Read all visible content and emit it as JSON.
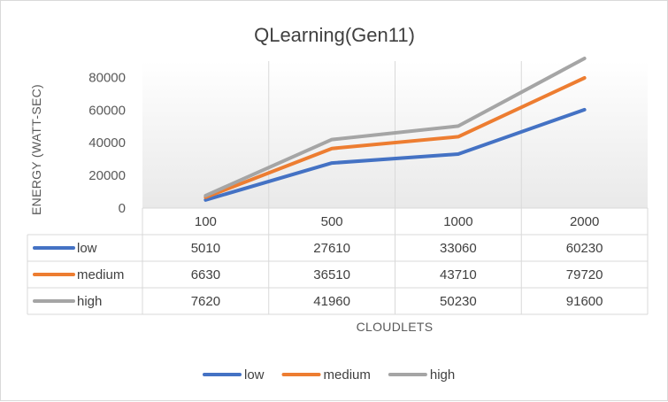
{
  "chart_data": {
    "type": "line",
    "title": "QLearning(Gen11)",
    "xlabel": "CLOUDLETS",
    "ylabel": "ENERGY (WATT-SEC)",
    "categories": [
      "100",
      "500",
      "1000",
      "2000"
    ],
    "ylim": [
      0,
      90000
    ],
    "yticks": [
      0,
      20000,
      40000,
      60000,
      80000
    ],
    "grid": true,
    "legend_position": "bottom",
    "data_table": true,
    "series": [
      {
        "name": "low",
        "color": "#4472C4",
        "values": [
          5010,
          27610,
          33060,
          60230
        ]
      },
      {
        "name": "medium",
        "color": "#ED7D31",
        "values": [
          6630,
          36510,
          43710,
          79720
        ]
      },
      {
        "name": "high",
        "color": "#A5A5A5",
        "values": [
          7620,
          41960,
          50230,
          91600
        ]
      }
    ]
  }
}
